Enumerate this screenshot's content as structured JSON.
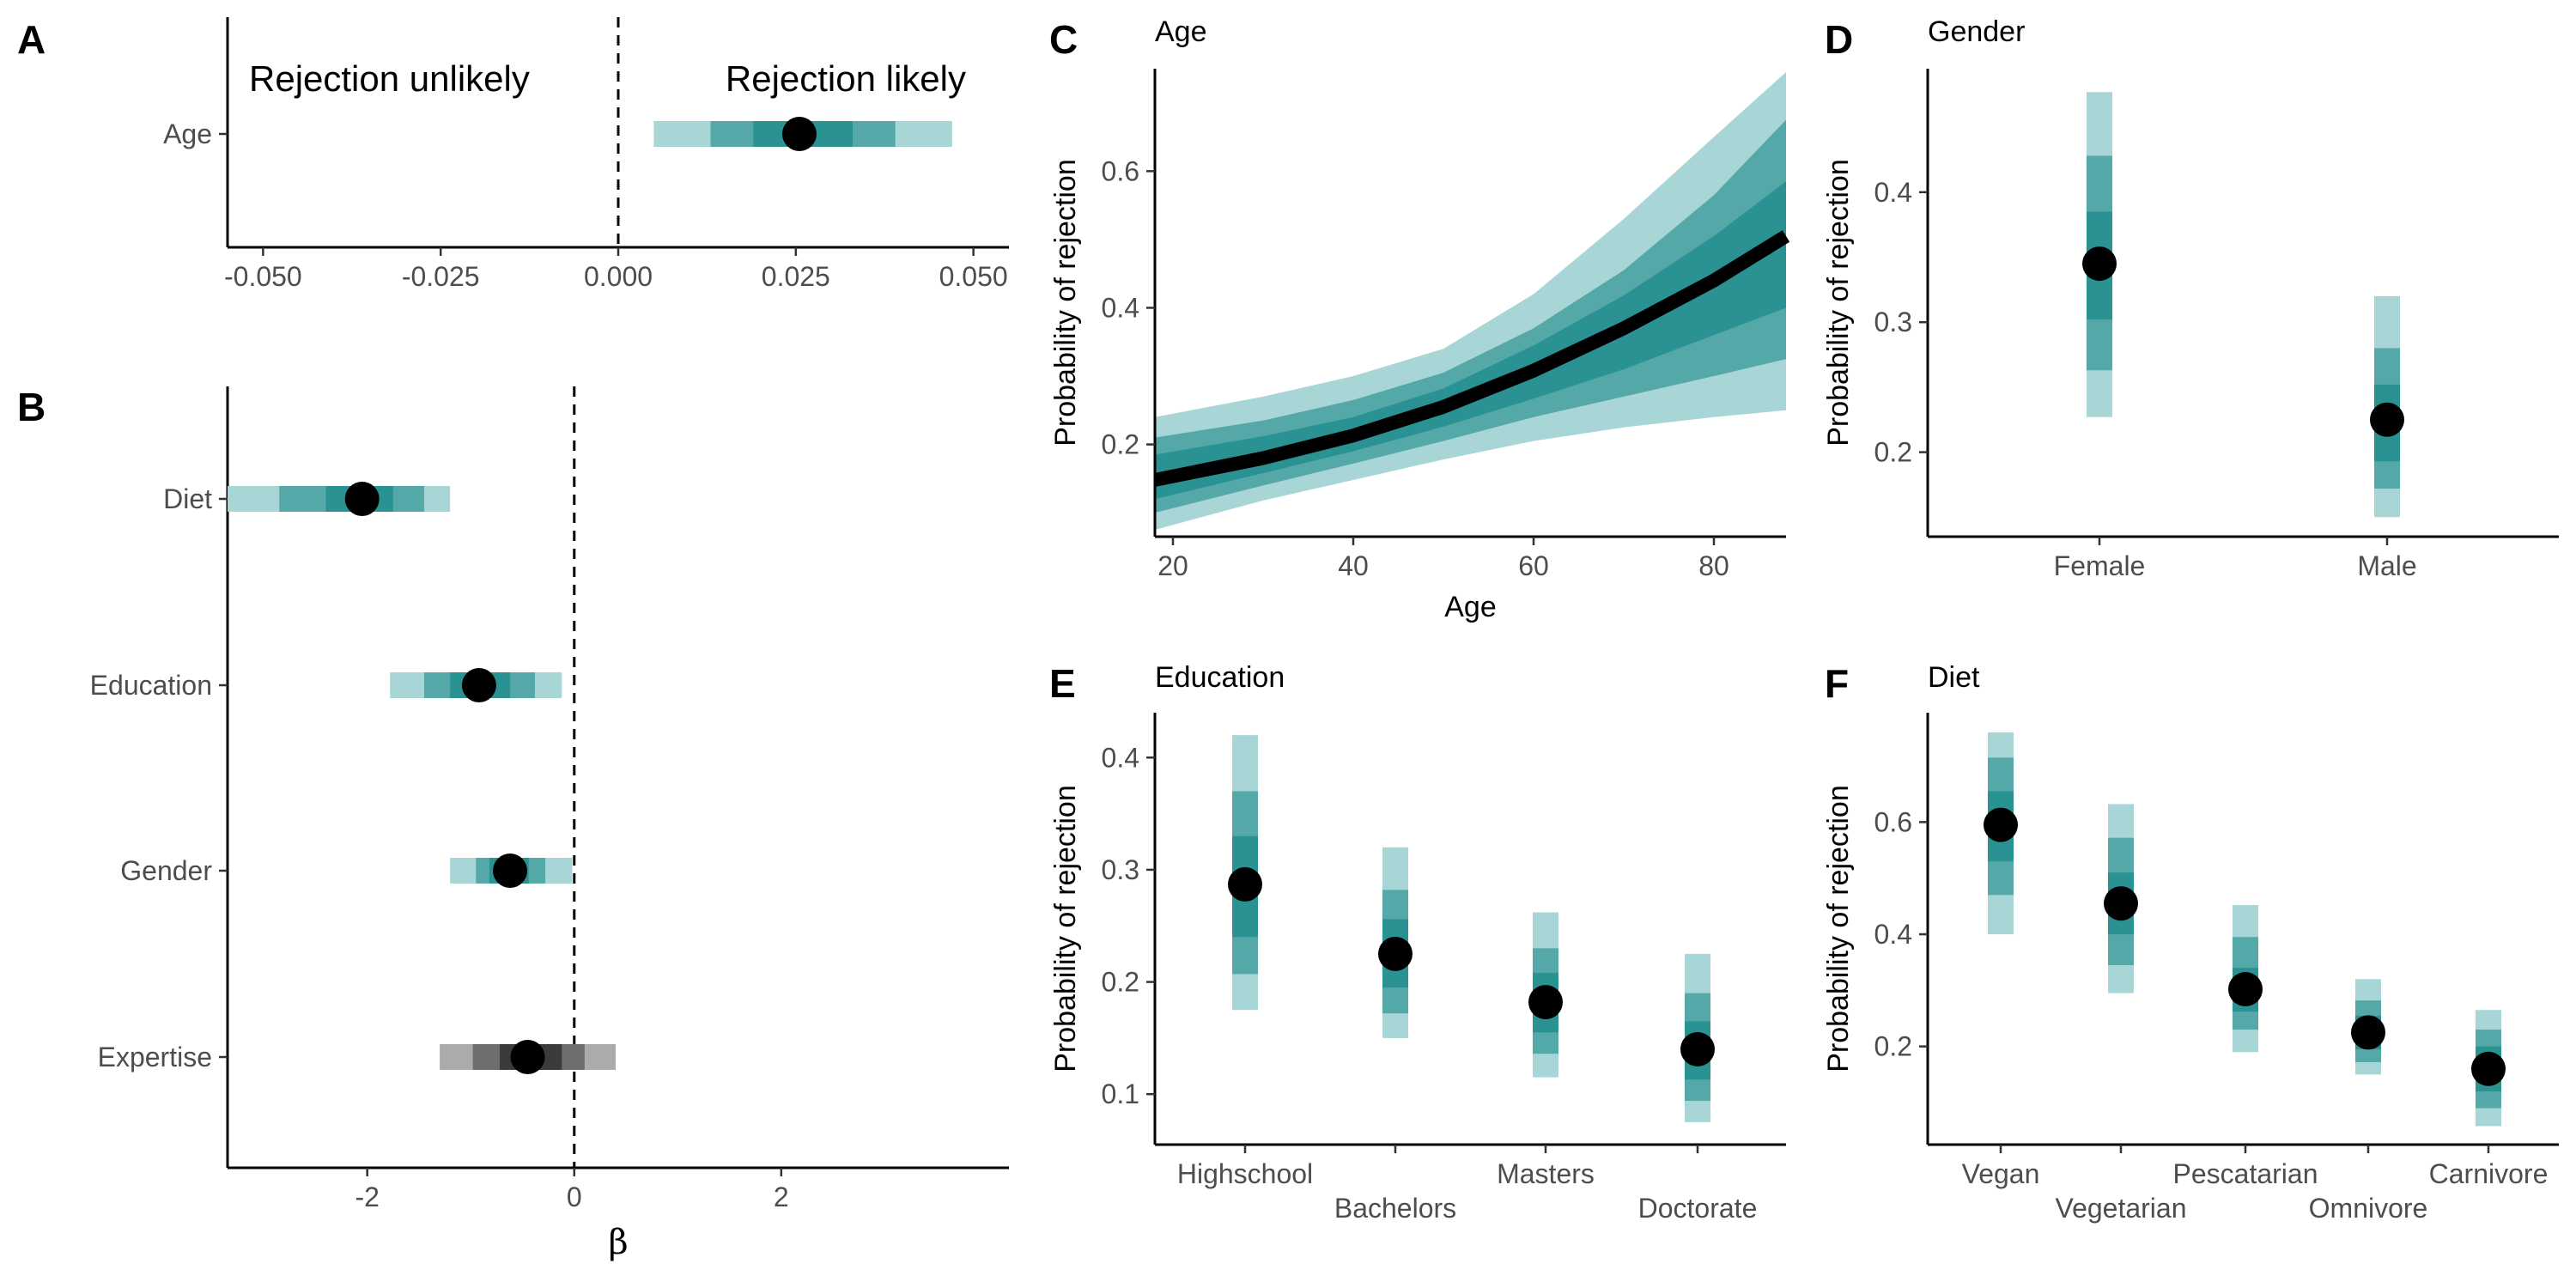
{
  "colors": {
    "band_light": "#a8d5d5",
    "band_mid": "#55a8a8",
    "band_dark": "#2a9292",
    "gray_light": "#ababab",
    "gray_mid": "#6e6e6e",
    "gray_dark": "#3b3b3b",
    "point": "#000000",
    "line": "#000000"
  },
  "panels": {
    "A": {
      "label": "A"
    },
    "B": {
      "label": "B",
      "xlabel": "β"
    },
    "C": {
      "label": "C",
      "title": "Age",
      "xlabel": "Age",
      "ylabel": "Probability of rejection"
    },
    "D": {
      "label": "D",
      "title": "Gender",
      "ylabel": "Probability of rejection"
    },
    "E": {
      "label": "E",
      "title": "Education",
      "ylabel": "Probability of rejection"
    },
    "F": {
      "label": "F",
      "title": "Diet",
      "ylabel": "Probability of rejection"
    }
  },
  "chart_data": [
    {
      "id": "A",
      "type": "interval",
      "annotations": {
        "left": "Rejection unlikely",
        "right": "Rejection likely"
      },
      "xlim": [
        -0.055,
        0.055
      ],
      "x_ticks": [
        -0.05,
        -0.025,
        0.0,
        0.025,
        0.05
      ],
      "x_tick_labels": [
        "-0.050",
        "-0.025",
        "0.000",
        "0.025",
        "0.050"
      ],
      "reference_line": 0,
      "rows": [
        {
          "name": "Age",
          "estimate": 0.0255,
          "intervals": [
            [
              0.005,
              0.047
            ],
            [
              0.013,
              0.039
            ],
            [
              0.019,
              0.033
            ]
          ],
          "palette": "teal"
        }
      ]
    },
    {
      "id": "B",
      "type": "interval",
      "xlabel": "β",
      "xlim": [
        -3.35,
        4.2
      ],
      "x_ticks": [
        -2,
        0,
        2
      ],
      "x_tick_labels": [
        "-2",
        "0",
        "2"
      ],
      "reference_line": 0,
      "rows": [
        {
          "name": "Diet",
          "estimate": -2.05,
          "intervals": [
            [
              -3.35,
              -1.2
            ],
            [
              -2.85,
              -1.45
            ],
            [
              -2.4,
              -1.75
            ]
          ],
          "palette": "teal"
        },
        {
          "name": "Education",
          "estimate": -0.92,
          "intervals": [
            [
              -1.78,
              -0.12
            ],
            [
              -1.45,
              -0.38
            ],
            [
              -1.2,
              -0.62
            ]
          ],
          "palette": "teal"
        },
        {
          "name": "Gender",
          "estimate": -0.62,
          "intervals": [
            [
              -1.2,
              -0.02
            ],
            [
              -0.95,
              -0.28
            ],
            [
              -0.82,
              -0.44
            ]
          ],
          "palette": "teal"
        },
        {
          "name": "Expertise",
          "estimate": -0.45,
          "intervals": [
            [
              -1.3,
              0.4
            ],
            [
              -0.98,
              0.1
            ],
            [
              -0.72,
              -0.12
            ]
          ],
          "palette": "gray"
        }
      ]
    },
    {
      "id": "C",
      "type": "line",
      "title": "Age",
      "xlabel": "Age",
      "ylabel": "Probability of rejection",
      "xlim": [
        18,
        88
      ],
      "ylim": [
        0.065,
        0.75
      ],
      "x_ticks": [
        20,
        40,
        60,
        80
      ],
      "y_ticks": [
        0.2,
        0.4,
        0.6
      ],
      "y_tick_labels": [
        "0.2",
        "0.4",
        "0.6"
      ],
      "x": [
        18,
        30,
        40,
        50,
        60,
        70,
        80,
        88
      ],
      "mean": [
        0.148,
        0.18,
        0.213,
        0.255,
        0.308,
        0.37,
        0.44,
        0.505
      ],
      "bands": [
        {
          "lower": [
            0.075,
            0.118,
            0.148,
            0.178,
            0.205,
            0.225,
            0.24,
            0.25
          ],
          "upper": [
            0.24,
            0.27,
            0.3,
            0.34,
            0.42,
            0.53,
            0.65,
            0.745
          ]
        },
        {
          "lower": [
            0.1,
            0.14,
            0.172,
            0.205,
            0.24,
            0.27,
            0.3,
            0.325
          ],
          "upper": [
            0.21,
            0.235,
            0.265,
            0.305,
            0.37,
            0.455,
            0.565,
            0.675
          ]
        },
        {
          "lower": [
            0.12,
            0.158,
            0.19,
            0.226,
            0.267,
            0.31,
            0.36,
            0.4
          ],
          "upper": [
            0.185,
            0.212,
            0.24,
            0.282,
            0.345,
            0.418,
            0.505,
            0.585
          ]
        }
      ]
    },
    {
      "id": "D",
      "type": "interval_vertical",
      "title": "Gender",
      "ylabel": "Probability of rejection",
      "ylim": [
        0.135,
        0.495
      ],
      "y_ticks": [
        0.2,
        0.3,
        0.4
      ],
      "y_tick_labels": [
        "0.2",
        "0.3",
        "0.4"
      ],
      "categories": [
        "Female",
        "Male"
      ],
      "points": [
        {
          "estimate": 0.345,
          "intervals": [
            [
              0.227,
              0.477
            ],
            [
              0.263,
              0.428
            ],
            [
              0.302,
              0.385
            ]
          ]
        },
        {
          "estimate": 0.225,
          "intervals": [
            [
              0.15,
              0.32
            ],
            [
              0.172,
              0.28
            ],
            [
              0.193,
              0.252
            ]
          ]
        }
      ]
    },
    {
      "id": "E",
      "type": "interval_vertical",
      "title": "Education",
      "ylabel": "Probability of rejection",
      "ylim": [
        0.055,
        0.44
      ],
      "y_ticks": [
        0.1,
        0.2,
        0.3,
        0.4
      ],
      "y_tick_labels": [
        "0.1",
        "0.2",
        "0.3",
        "0.4"
      ],
      "categories": [
        "Highschool",
        "Bachelors",
        "Masters",
        "Doctorate"
      ],
      "points": [
        {
          "estimate": 0.287,
          "intervals": [
            [
              0.175,
              0.42
            ],
            [
              0.207,
              0.37
            ],
            [
              0.24,
              0.33
            ]
          ]
        },
        {
          "estimate": 0.225,
          "intervals": [
            [
              0.15,
              0.32
            ],
            [
              0.172,
              0.282
            ],
            [
              0.195,
              0.256
            ]
          ]
        },
        {
          "estimate": 0.182,
          "intervals": [
            [
              0.115,
              0.262
            ],
            [
              0.136,
              0.23
            ],
            [
              0.155,
              0.208
            ]
          ]
        },
        {
          "estimate": 0.14,
          "intervals": [
            [
              0.075,
              0.225
            ],
            [
              0.094,
              0.19
            ],
            [
              0.113,
              0.165
            ]
          ]
        }
      ]
    },
    {
      "id": "F",
      "type": "interval_vertical",
      "title": "Diet",
      "ylabel": "Probability of rejection",
      "ylim": [
        0.025,
        0.795
      ],
      "y_ticks": [
        0.2,
        0.4,
        0.6
      ],
      "y_tick_labels": [
        "0.2",
        "0.4",
        "0.6"
      ],
      "categories": [
        "Vegan",
        "Vegetarian",
        "Pescatarian",
        "Omnivore",
        "Carnivore"
      ],
      "points": [
        {
          "estimate": 0.595,
          "intervals": [
            [
              0.4,
              0.76
            ],
            [
              0.47,
              0.715
            ],
            [
              0.53,
              0.655
            ]
          ]
        },
        {
          "estimate": 0.455,
          "intervals": [
            [
              0.295,
              0.632
            ],
            [
              0.345,
              0.572
            ],
            [
              0.4,
              0.51
            ]
          ]
        },
        {
          "estimate": 0.302,
          "intervals": [
            [
              0.19,
              0.452
            ],
            [
              0.23,
              0.395
            ],
            [
              0.262,
              0.34
            ]
          ]
        },
        {
          "estimate": 0.225,
          "intervals": [
            [
              0.15,
              0.32
            ],
            [
              0.172,
              0.282
            ],
            [
              0.195,
              0.255
            ]
          ]
        },
        {
          "estimate": 0.16,
          "intervals": [
            [
              0.058,
              0.265
            ],
            [
              0.09,
              0.23
            ],
            [
              0.12,
              0.2
            ]
          ]
        }
      ]
    }
  ]
}
